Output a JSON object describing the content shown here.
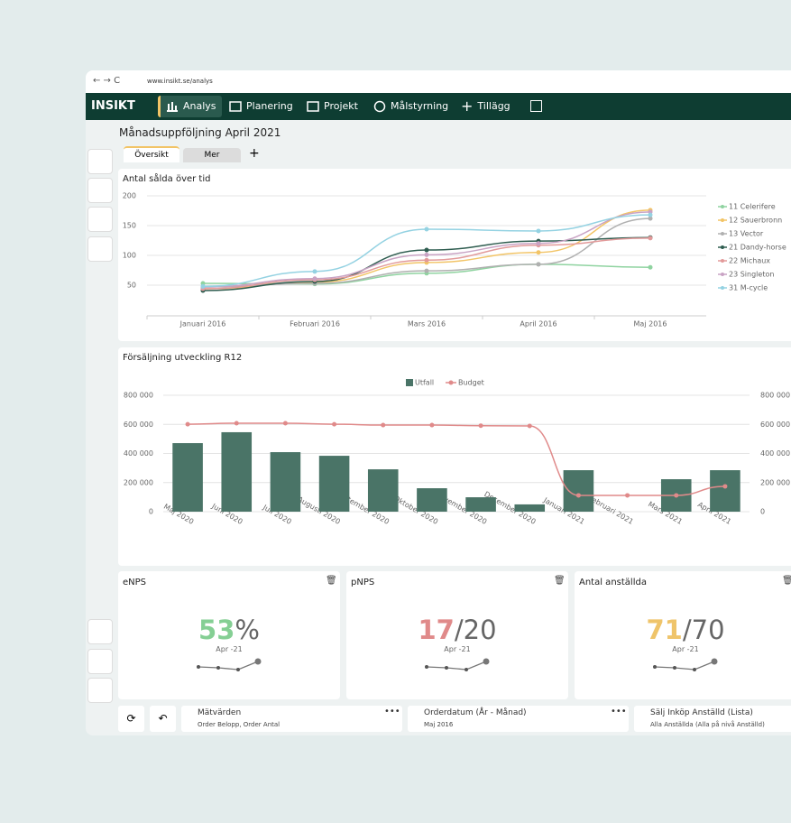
{
  "browser": {
    "url": "www.insikt.se/analys"
  },
  "nav": {
    "brand": "INSIKT",
    "items": [
      "Analys",
      "Planering",
      "Projekt",
      "Målstyrning",
      "Tillägg"
    ]
  },
  "page": {
    "title": "Månadsuppföljning April 2021",
    "tabs": [
      "Översikt",
      "Mer"
    ]
  },
  "chart_data": [
    {
      "type": "line",
      "title": "Antal sålda över tid",
      "categories": [
        "Januari 2016",
        "Februari 2016",
        "Mars 2016",
        "April 2016",
        "Maj 2016"
      ],
      "ylim": [
        0,
        200
      ],
      "yticks": [
        50,
        100,
        150,
        200
      ],
      "grid": true,
      "legend": "right",
      "series": [
        {
          "name": "11 Celerifere",
          "color": "#8fd3a0",
          "values": [
            53,
            52,
            70,
            85,
            80
          ]
        },
        {
          "name": "12 Sauerbronn",
          "color": "#f2c466",
          "values": [
            44,
            55,
            88,
            105,
            176
          ]
        },
        {
          "name": "13 Vector",
          "color": "#b0b0b0",
          "values": [
            47,
            53,
            74,
            85,
            162
          ]
        },
        {
          "name": "21 Dandy-horse",
          "color": "#2f5d50",
          "values": [
            41,
            56,
            109,
            124,
            130
          ]
        },
        {
          "name": "22 Michaux",
          "color": "#e29a9a",
          "values": [
            44,
            59,
            92,
            117,
            129
          ]
        },
        {
          "name": "23 Singleton",
          "color": "#c9a3c4",
          "values": [
            47,
            61,
            101,
            120,
            173
          ]
        },
        {
          "name": "31 M-cycle",
          "color": "#94d2e2",
          "values": [
            48,
            73,
            144,
            141,
            168
          ]
        }
      ]
    },
    {
      "type": "bar",
      "title": "Försäljning utveckling R12",
      "categories": [
        "Maj 2020",
        "Juni 2020",
        "Juli 2020",
        "Augusti 2020",
        "September 2020",
        "Oktober 2020",
        "November 2020",
        "December 2020",
        "Januari 2021",
        "Februari 2021",
        "Mars 2021",
        "April 2021"
      ],
      "ylim": [
        0,
        800000
      ],
      "yticks": [
        0,
        {
          "value": 200000,
          "label": "200 000"
        },
        {
          "value": 400000,
          "label": "400 000"
        },
        {
          "value": 600000,
          "label": "600 000"
        },
        {
          "value": 800000,
          "label": "800 000"
        }
      ],
      "y2lim": [
        0,
        800000
      ],
      "y2ticks": [
        0,
        {
          "value": 200000,
          "label": "200 000"
        },
        {
          "value": 400000,
          "label": "400 000"
        },
        {
          "value": 600000,
          "label": "600 000"
        },
        {
          "value": 800000,
          "label": "800 000"
        }
      ],
      "grid": true,
      "legend": "top",
      "series": [
        {
          "name": "Utfall",
          "type": "bar",
          "color": "#4a7467",
          "values": [
            471000,
            546000,
            409000,
            384000,
            291000,
            161000,
            99000,
            50000,
            285000,
            null,
            223000,
            285000
          ]
        },
        {
          "name": "Budget",
          "type": "line",
          "axis": "y2",
          "color": "#e08a8a",
          "values": [
            601000,
            608000,
            608000,
            601000,
            595000,
            595000,
            591000,
            589000,
            112000,
            112000,
            112000,
            174000
          ]
        }
      ]
    }
  ],
  "kpis": [
    {
      "title": "eNPS",
      "value": 53,
      "unit": "%",
      "period": "Apr -21",
      "color": "#85cf94"
    },
    {
      "title": "pNPS",
      "value": 17,
      "unit": "/20",
      "period": "Apr -21",
      "color": "#e08a8a"
    },
    {
      "title": "Antal anställda",
      "value": 71,
      "unit": "/70",
      "period": "Apr -21",
      "color": "#efc46a"
    }
  ],
  "filters": [
    {
      "label": "Mätvärden",
      "value": "Order Belopp, Order Antal"
    },
    {
      "label": "Orderdatum (År - Månad)",
      "value": "Maj 2016"
    },
    {
      "label": "Sälj Inköp Anställd (Lista)",
      "value": "Alla Anställda (Alla på nivå Anställd)"
    }
  ]
}
